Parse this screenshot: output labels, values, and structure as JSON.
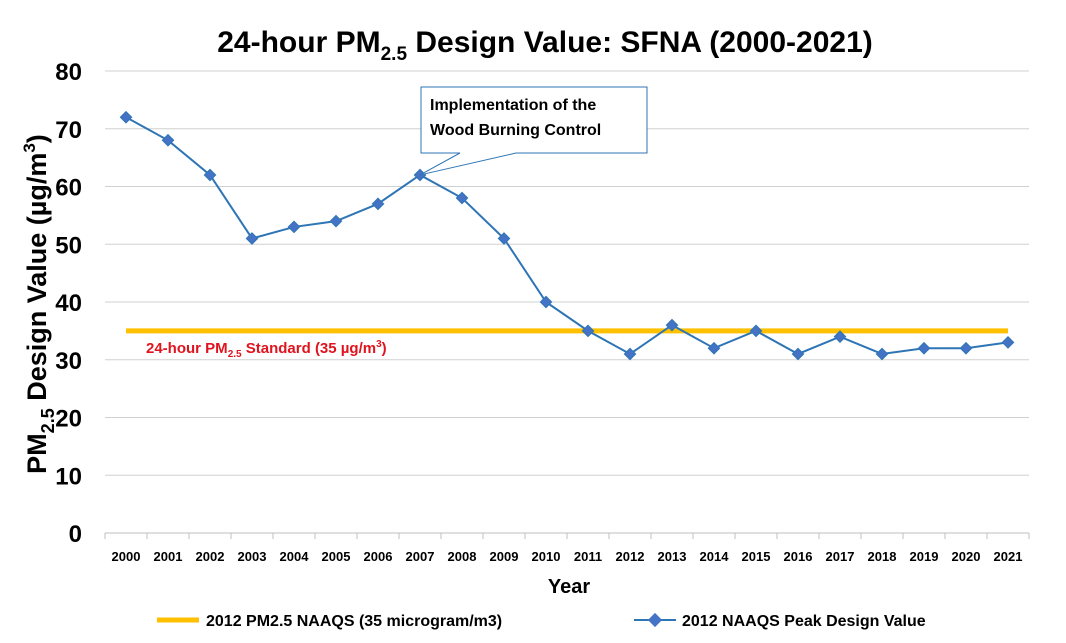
{
  "chart_data": {
    "type": "line",
    "title": {
      "prefix": "24-hour PM",
      "subscript": "2.5",
      "suffix": " Design Value: SFNA (2000-2021)"
    },
    "xlabel": "Year",
    "ylabel": {
      "prefix": "PM",
      "subscript": "2.5",
      "middle": " Design Value (µg/m",
      "superscript": "3",
      "suffix": ")"
    },
    "ylim": [
      0,
      80
    ],
    "ytick_step": 10,
    "grid": true,
    "categories": [
      "2000",
      "2001",
      "2002",
      "2003",
      "2004",
      "2005",
      "2006",
      "2007",
      "2008",
      "2009",
      "2010",
      "2011",
      "2012",
      "2013",
      "2014",
      "2015",
      "2016",
      "2017",
      "2018",
      "2019",
      "2020",
      "2021"
    ],
    "series": [
      {
        "name": "2012 NAAQS Peak Design Value",
        "color": "#2e75b6",
        "values": [
          72,
          68,
          62,
          51,
          53,
          54,
          57,
          62,
          58,
          51,
          40,
          35,
          31,
          36,
          32,
          35,
          31,
          34,
          31,
          32,
          32,
          33
        ]
      },
      {
        "name": "2012 PM2.5 NAAQS (35 microgram/m3)",
        "color": "#ffc000",
        "value": 35
      }
    ],
    "standard_label": {
      "prefix": "24-hour PM",
      "subscript": "2.5",
      "middle": " Standard (35 µg/m",
      "superscript": "3",
      "suffix": ")",
      "color": "#e0141e"
    },
    "annotation": {
      "lines": [
        "Implementation of the",
        "Wood Burning Control"
      ],
      "target_year": "2007",
      "target_value": 62
    },
    "legend_position": "bottom"
  }
}
